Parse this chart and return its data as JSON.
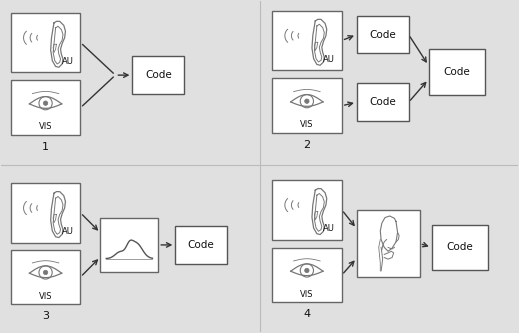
{
  "bg_color": "#e8e8e8",
  "box_edge": "#666666",
  "arrow_color": "#333333",
  "text_color": "#111111",
  "fig_bg": "#e0e0e0",
  "panel_labels": [
    "1",
    "2",
    "3",
    "4"
  ],
  "code_label": "Code",
  "au_label": "AU",
  "vis_label": "VIS",
  "line_color": "#777777"
}
